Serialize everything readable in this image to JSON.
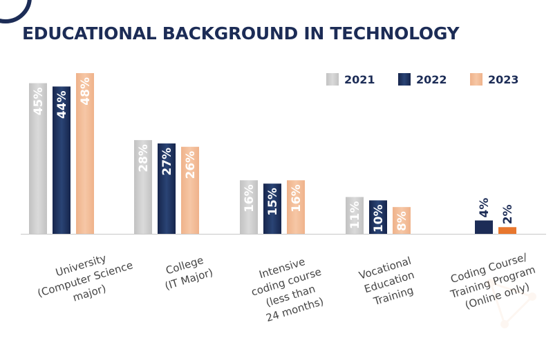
{
  "title": "EDUCATIONAL BACKGROUND IN TECHNOLOGY",
  "chart_data": {
    "type": "bar",
    "title": "EDUCATIONAL BACKGROUND IN TECHNOLOGY",
    "xlabel": "",
    "ylabel": "",
    "ylim": [
      0,
      48
    ],
    "grid": false,
    "legend_position": "top-right",
    "categories": [
      [
        "University",
        "(Computer Science",
        "major)"
      ],
      [
        "College",
        "(IT Major)"
      ],
      [
        "Intensive",
        "coding course",
        "(less than",
        "24 months)"
      ],
      [
        "Vocational",
        "Education",
        "Training"
      ],
      [
        "Coding Course/",
        "Training Program",
        "(Online only)"
      ]
    ],
    "series": [
      {
        "name": "2021",
        "color": "#cccccc",
        "values": [
          45,
          28,
          16,
          11,
          null
        ],
        "labels": [
          "45%",
          "28%",
          "16%",
          "11%",
          ""
        ]
      },
      {
        "name": "2022",
        "color": "#1c2c56",
        "values": [
          44,
          27,
          15,
          10,
          4
        ],
        "labels": [
          "44%",
          "27%",
          "15%",
          "10%",
          "4%"
        ]
      },
      {
        "name": "2023",
        "color": "#f2b48e",
        "values": [
          48,
          26,
          16,
          8,
          2
        ],
        "labels": [
          "48%",
          "26%",
          "16%",
          "8%",
          "2%"
        ]
      }
    ]
  }
}
